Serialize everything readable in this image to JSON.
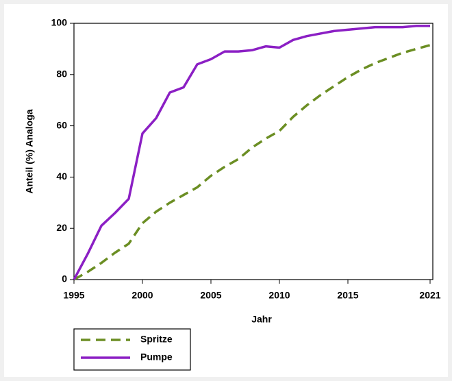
{
  "chart_data": {
    "type": "line",
    "xlabel": "Jahr",
    "ylabel": "Anteil (%) Analoga",
    "x": [
      1995,
      1996,
      1997,
      1998,
      1999,
      2000,
      2001,
      2002,
      2003,
      2004,
      2005,
      2006,
      2007,
      2008,
      2009,
      2010,
      2011,
      2012,
      2013,
      2014,
      2015,
      2016,
      2017,
      2018,
      2019,
      2020,
      2021
    ],
    "series": [
      {
        "name": "Spritze",
        "color": "#6b8e23",
        "style": "dashed",
        "values": [
          0,
          3,
          6.5,
          10.5,
          14,
          22,
          26.5,
          30,
          33,
          36,
          40.5,
          44,
          47,
          51.5,
          55,
          58,
          63.5,
          68,
          72,
          75.5,
          79,
          82,
          84.5,
          86.5,
          88.5,
          90,
          91.5
        ]
      },
      {
        "name": "Pumpe",
        "color": "#8b1fc4",
        "style": "solid",
        "values": [
          0,
          10,
          21,
          26,
          31.5,
          57,
          63,
          73,
          75,
          84,
          86,
          89,
          89,
          89.5,
          91,
          90.5,
          93.5,
          95,
          96,
          97,
          97.5,
          98,
          98.5,
          98.5,
          98.5,
          99,
          99
        ]
      }
    ],
    "xlim": [
      1995,
      2021.2
    ],
    "xticks": [
      1995,
      2000,
      2005,
      2010,
      2015,
      2021
    ],
    "ylim": [
      0,
      100
    ],
    "yticks": [
      0,
      20,
      40,
      60,
      80,
      100
    ],
    "legend": "bottom-left"
  }
}
